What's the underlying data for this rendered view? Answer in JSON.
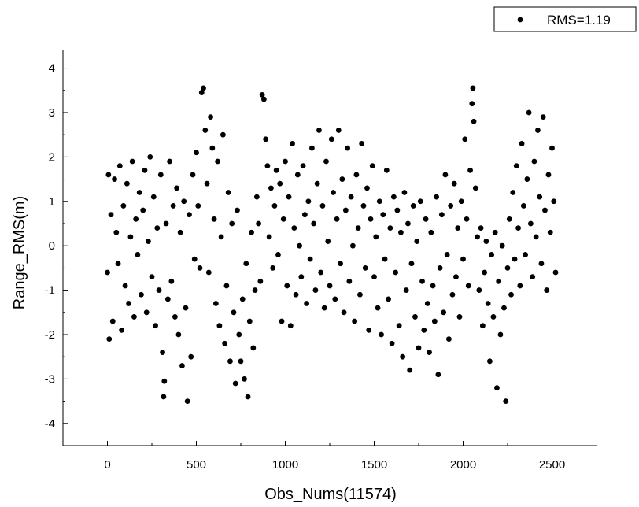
{
  "chart_data": {
    "type": "scatter",
    "title": "",
    "xlabel": "Obs_Nums(11574)",
    "ylabel": "Range_RMS(m)",
    "xlim": [
      -250,
      2750
    ],
    "ylim": [
      -4.5,
      4.4
    ],
    "xticks": [
      0,
      500,
      1000,
      1500,
      2000,
      2500
    ],
    "yticks": [
      -4,
      -3,
      -2,
      -1,
      0,
      1,
      2,
      3,
      4
    ],
    "grid": false,
    "legend_position": "top-right",
    "marker_color": "#000000",
    "series": [
      {
        "name": "RMS=1.19",
        "points": [
          [
            0,
            -0.6
          ],
          [
            6,
            1.6
          ],
          [
            10,
            -2.1
          ],
          [
            20,
            0.7
          ],
          [
            30,
            -1.7
          ],
          [
            40,
            1.5
          ],
          [
            50,
            0.3
          ],
          [
            60,
            -0.4
          ],
          [
            70,
            1.8
          ],
          [
            80,
            -1.9
          ],
          [
            90,
            0.9
          ],
          [
            100,
            -0.9
          ],
          [
            110,
            1.4
          ],
          [
            120,
            -1.3
          ],
          [
            130,
            0.2
          ],
          [
            140,
            1.9
          ],
          [
            150,
            -1.6
          ],
          [
            160,
            0.6
          ],
          [
            170,
            -0.2
          ],
          [
            180,
            1.2
          ],
          [
            190,
            -1.1
          ],
          [
            200,
            0.8
          ],
          [
            210,
            1.7
          ],
          [
            220,
            -1.5
          ],
          [
            230,
            0.1
          ],
          [
            240,
            2.0
          ],
          [
            250,
            -0.7
          ],
          [
            260,
            1.1
          ],
          [
            270,
            -1.8
          ],
          [
            280,
            0.4
          ],
          [
            290,
            -1.0
          ],
          [
            300,
            1.6
          ],
          [
            310,
            -2.4
          ],
          [
            316,
            -3.4
          ],
          [
            320,
            -3.05
          ],
          [
            330,
            0.5
          ],
          [
            340,
            -1.2
          ],
          [
            350,
            1.9
          ],
          [
            360,
            -0.8
          ],
          [
            370,
            0.9
          ],
          [
            380,
            -1.6
          ],
          [
            390,
            1.3
          ],
          [
            400,
            -2.0
          ],
          [
            410,
            0.3
          ],
          [
            420,
            -2.7
          ],
          [
            430,
            1.0
          ],
          [
            440,
            -1.4
          ],
          [
            450,
            -3.5
          ],
          [
            460,
            0.7
          ],
          [
            470,
            -2.5
          ],
          [
            480,
            1.6
          ],
          [
            490,
            -0.3
          ],
          [
            500,
            2.1
          ],
          [
            510,
            0.9
          ],
          [
            520,
            -0.5
          ],
          [
            530,
            3.45
          ],
          [
            540,
            3.55
          ],
          [
            550,
            2.6
          ],
          [
            560,
            1.4
          ],
          [
            570,
            -0.6
          ],
          [
            580,
            2.9
          ],
          [
            590,
            2.2
          ],
          [
            600,
            0.6
          ],
          [
            610,
            -1.3
          ],
          [
            620,
            1.9
          ],
          [
            630,
            -1.8
          ],
          [
            640,
            0.2
          ],
          [
            650,
            2.5
          ],
          [
            660,
            -2.2
          ],
          [
            670,
            -0.9
          ],
          [
            680,
            1.2
          ],
          [
            690,
            -2.6
          ],
          [
            700,
            0.5
          ],
          [
            710,
            -1.5
          ],
          [
            720,
            -3.1
          ],
          [
            730,
            0.8
          ],
          [
            740,
            -2.0
          ],
          [
            750,
            -2.6
          ],
          [
            760,
            -1.2
          ],
          [
            770,
            -3.0
          ],
          [
            780,
            -0.4
          ],
          [
            790,
            -3.4
          ],
          [
            800,
            -1.7
          ],
          [
            810,
            0.3
          ],
          [
            820,
            -2.3
          ],
          [
            830,
            -1.0
          ],
          [
            840,
            1.1
          ],
          [
            850,
            0.5
          ],
          [
            860,
            -0.8
          ],
          [
            870,
            3.4
          ],
          [
            880,
            3.3
          ],
          [
            890,
            2.4
          ],
          [
            900,
            1.8
          ],
          [
            910,
            0.2
          ],
          [
            920,
            1.3
          ],
          [
            930,
            -0.5
          ],
          [
            940,
            0.9
          ],
          [
            950,
            1.7
          ],
          [
            960,
            -0.2
          ],
          [
            970,
            1.4
          ],
          [
            980,
            -1.7
          ],
          [
            990,
            0.6
          ],
          [
            1000,
            1.9
          ],
          [
            1010,
            -0.9
          ],
          [
            1020,
            1.1
          ],
          [
            1030,
            -1.8
          ],
          [
            1040,
            2.3
          ],
          [
            1050,
            0.4
          ],
          [
            1060,
            -1.1
          ],
          [
            1070,
            1.6
          ],
          [
            1080,
            0.0
          ],
          [
            1090,
            -0.7
          ],
          [
            1100,
            1.8
          ],
          [
            1110,
            0.7
          ],
          [
            1120,
            -1.3
          ],
          [
            1130,
            1.0
          ],
          [
            1140,
            -0.3
          ],
          [
            1150,
            2.2
          ],
          [
            1160,
            0.5
          ],
          [
            1170,
            -1.0
          ],
          [
            1180,
            1.4
          ],
          [
            1190,
            2.6
          ],
          [
            1200,
            -0.6
          ],
          [
            1210,
            0.9
          ],
          [
            1220,
            -1.4
          ],
          [
            1230,
            1.9
          ],
          [
            1240,
            0.1
          ],
          [
            1250,
            -0.9
          ],
          [
            1260,
            2.4
          ],
          [
            1270,
            1.2
          ],
          [
            1280,
            -1.2
          ],
          [
            1290,
            0.6
          ],
          [
            1300,
            2.6
          ],
          [
            1310,
            -0.4
          ],
          [
            1320,
            1.5
          ],
          [
            1330,
            -1.5
          ],
          [
            1340,
            0.8
          ],
          [
            1350,
            2.2
          ],
          [
            1360,
            -0.8
          ],
          [
            1370,
            1.1
          ],
          [
            1380,
            0.0
          ],
          [
            1390,
            -1.7
          ],
          [
            1400,
            1.6
          ],
          [
            1410,
            0.4
          ],
          [
            1420,
            -1.1
          ],
          [
            1430,
            2.3
          ],
          [
            1440,
            0.9
          ],
          [
            1450,
            -0.5
          ],
          [
            1460,
            1.3
          ],
          [
            1470,
            -1.9
          ],
          [
            1480,
            0.6
          ],
          [
            1490,
            1.8
          ],
          [
            1500,
            -0.7
          ],
          [
            1510,
            0.2
          ],
          [
            1520,
            -1.4
          ],
          [
            1530,
            1.0
          ],
          [
            1540,
            -2.0
          ],
          [
            1550,
            0.7
          ],
          [
            1560,
            -0.3
          ],
          [
            1570,
            1.7
          ],
          [
            1580,
            -1.2
          ],
          [
            1590,
            0.4
          ],
          [
            1600,
            -2.2
          ],
          [
            1610,
            1.1
          ],
          [
            1620,
            -0.6
          ],
          [
            1630,
            0.8
          ],
          [
            1640,
            -1.8
          ],
          [
            1650,
            0.3
          ],
          [
            1660,
            -2.5
          ],
          [
            1670,
            1.2
          ],
          [
            1680,
            -1.0
          ],
          [
            1690,
            0.5
          ],
          [
            1700,
            -2.8
          ],
          [
            1710,
            -0.4
          ],
          [
            1720,
            0.9
          ],
          [
            1730,
            -1.6
          ],
          [
            1740,
            0.1
          ],
          [
            1750,
            -2.3
          ],
          [
            1760,
            1.0
          ],
          [
            1770,
            -0.8
          ],
          [
            1780,
            -1.9
          ],
          [
            1790,
            0.6
          ],
          [
            1800,
            -1.3
          ],
          [
            1810,
            -2.4
          ],
          [
            1820,
            0.3
          ],
          [
            1830,
            -0.9
          ],
          [
            1840,
            -1.7
          ],
          [
            1850,
            1.1
          ],
          [
            1860,
            -2.9
          ],
          [
            1870,
            -0.5
          ],
          [
            1880,
            0.7
          ],
          [
            1890,
            -1.5
          ],
          [
            1900,
            1.6
          ],
          [
            1910,
            -0.2
          ],
          [
            1920,
            -2.1
          ],
          [
            1930,
            0.9
          ],
          [
            1940,
            -1.1
          ],
          [
            1950,
            1.4
          ],
          [
            1960,
            -0.7
          ],
          [
            1970,
            0.4
          ],
          [
            1980,
            -1.6
          ],
          [
            1990,
            1.0
          ],
          [
            2000,
            -0.3
          ],
          [
            2010,
            2.4
          ],
          [
            2020,
            0.6
          ],
          [
            2030,
            -0.9
          ],
          [
            2040,
            1.7
          ],
          [
            2050,
            3.2
          ],
          [
            2055,
            3.55
          ],
          [
            2060,
            2.8
          ],
          [
            2070,
            1.3
          ],
          [
            2080,
            0.2
          ],
          [
            2090,
            -1.0
          ],
          [
            2100,
            0.4
          ],
          [
            2110,
            -1.8
          ],
          [
            2120,
            -0.6
          ],
          [
            2130,
            0.1
          ],
          [
            2140,
            -1.3
          ],
          [
            2150,
            -2.6
          ],
          [
            2160,
            -0.2
          ],
          [
            2170,
            -1.6
          ],
          [
            2180,
            0.3
          ],
          [
            2190,
            -3.2
          ],
          [
            2200,
            -0.8
          ],
          [
            2210,
            -2.0
          ],
          [
            2220,
            0.0
          ],
          [
            2230,
            -1.4
          ],
          [
            2240,
            -3.5
          ],
          [
            2250,
            -0.5
          ],
          [
            2260,
            0.6
          ],
          [
            2270,
            -1.1
          ],
          [
            2280,
            1.2
          ],
          [
            2290,
            -0.3
          ],
          [
            2300,
            1.8
          ],
          [
            2310,
            0.4
          ],
          [
            2320,
            -0.9
          ],
          [
            2330,
            2.3
          ],
          [
            2340,
            0.9
          ],
          [
            2350,
            -0.2
          ],
          [
            2360,
            1.5
          ],
          [
            2370,
            3.0
          ],
          [
            2380,
            0.5
          ],
          [
            2390,
            -0.7
          ],
          [
            2400,
            1.9
          ],
          [
            2410,
            0.2
          ],
          [
            2420,
            2.6
          ],
          [
            2430,
            1.1
          ],
          [
            2440,
            -0.4
          ],
          [
            2450,
            2.9
          ],
          [
            2460,
            0.8
          ],
          [
            2470,
            -1.0
          ],
          [
            2480,
            1.6
          ],
          [
            2490,
            0.3
          ],
          [
            2500,
            2.2
          ],
          [
            2510,
            1.0
          ],
          [
            2520,
            -0.6
          ]
        ]
      }
    ]
  }
}
